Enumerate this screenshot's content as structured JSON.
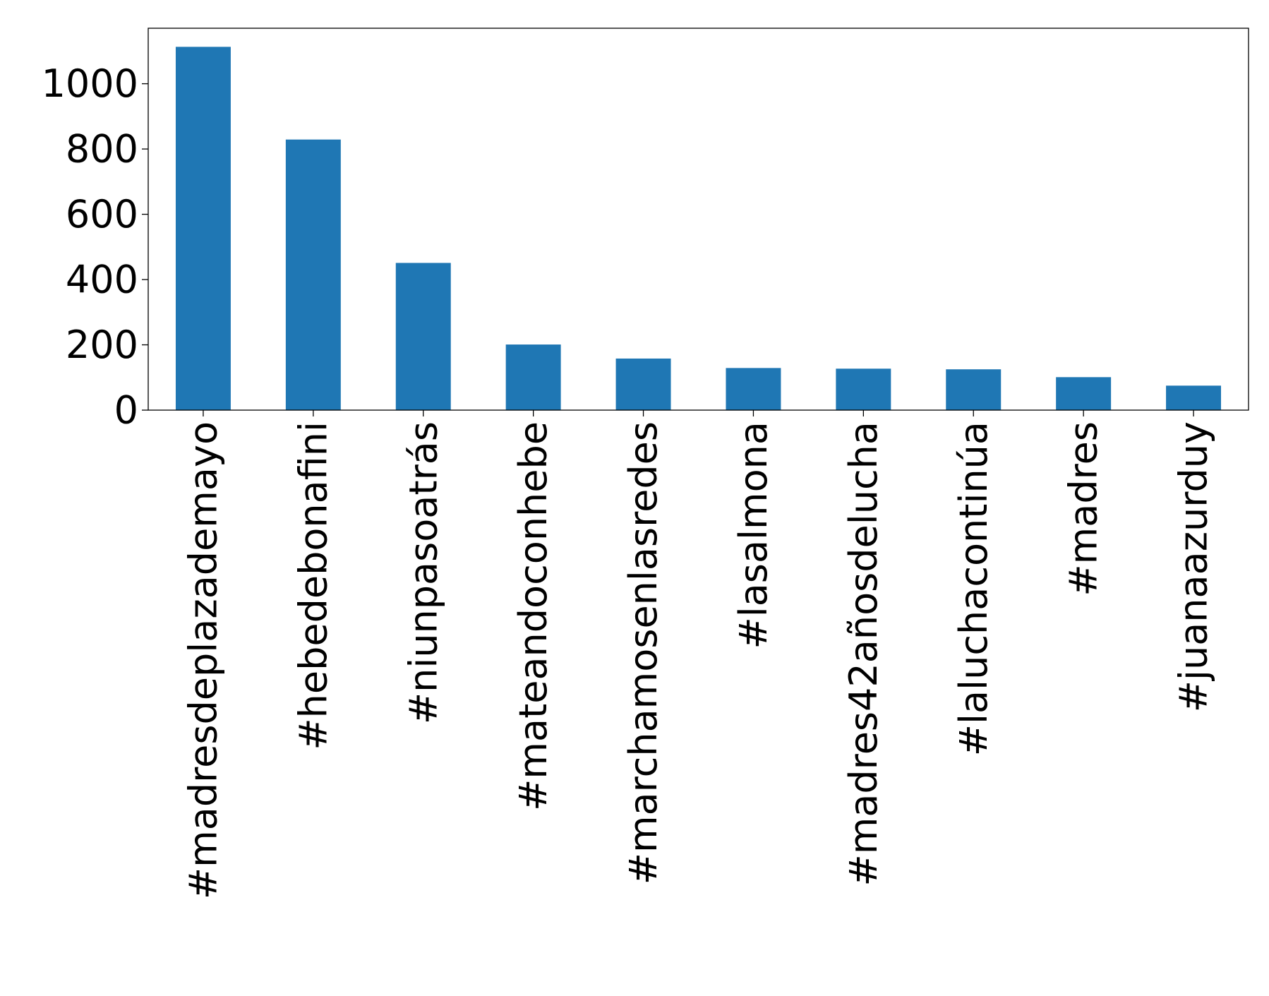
{
  "chart_data": {
    "type": "bar",
    "title": "",
    "xlabel": "",
    "ylabel": "",
    "categories": [
      "#madresdeplazademayo",
      "#hebedebonafini",
      "#niunpasoatrás",
      "#mateandoconhebe",
      "#marchamosenlasredes",
      "#lasalmona",
      "#madres42añosdelucha",
      "#laluchacontinúa",
      "#madres",
      "#juanaazurduy"
    ],
    "values": [
      1113,
      829,
      451,
      201,
      158,
      129,
      127,
      125,
      101,
      75
    ],
    "ylim": [
      0,
      1170
    ],
    "yticks": [
      0,
      200,
      400,
      600,
      800,
      1000
    ],
    "grid": false,
    "legend": "none",
    "bar_color": "#1f77b4"
  }
}
